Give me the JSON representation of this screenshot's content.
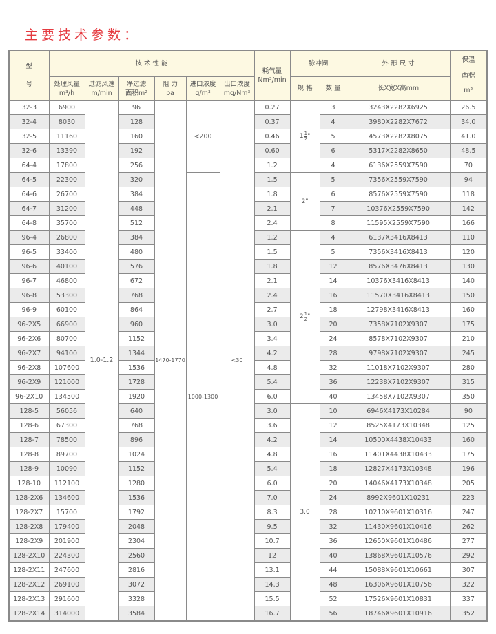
{
  "title": "主要技术参数：",
  "colors": {
    "title": "#e53a40",
    "header_bg": "#fdf9e2",
    "alt_row": "#ebebeb"
  },
  "header": {
    "model": "型\n号",
    "tech_perf": "技 术 性 能",
    "air_volume": "处理风量",
    "air_volume_unit": "m³/h",
    "filter_speed": "过滤风速",
    "filter_speed_unit": "m/min",
    "filter_area": "净过滤",
    "filter_area_unit": "面积m²",
    "resistance": "阻 力",
    "resistance_unit": "pa",
    "inlet_conc": "进口浓度",
    "inlet_conc_unit": "g/m³",
    "outlet_conc": "出口浓度",
    "outlet_conc_unit": "mg/Nm³",
    "air_consumption": "耗气量",
    "air_consumption_unit": "Nm³/min",
    "pulse_valve": "脉冲阀",
    "valve_spec": "规 格",
    "valve_count": "数 量",
    "dimensions": "外 形 尺 寸",
    "dimensions_sub": "长X宽X高mm",
    "insulation": "保温",
    "insulation2": "面积",
    "insulation_unit": "m²"
  },
  "merged": {
    "filter_speed": "1.0-1.2",
    "resistance": "1470-1770",
    "inlet_conc": [
      "<200",
      "1000-1300"
    ],
    "outlet_conc": "<30",
    "valve_spec": [
      {
        "whole": "1",
        "num": "1",
        "den": "2",
        "unit": "\""
      },
      {
        "whole": "2",
        "unit": "\""
      },
      {
        "whole": "2",
        "num": "1",
        "den": "2",
        "unit": "\""
      },
      {
        "whole": "3.0"
      }
    ]
  },
  "rows": [
    [
      "32-3",
      "6900",
      "96",
      "0.27",
      "3",
      "3243X2282X6925",
      "26.5"
    ],
    [
      "32-4",
      "8030",
      "128",
      "0.37",
      "4",
      "3980X2282X7672",
      "34.0"
    ],
    [
      "32-5",
      "11160",
      "160",
      "0.46",
      "5",
      "4573X2282X8075",
      "41.0"
    ],
    [
      "32-6",
      "13390",
      "192",
      "0.60",
      "6",
      "5317X2282X8650",
      "48.5"
    ],
    [
      "64-4",
      "17800",
      "256",
      "1.2",
      "4",
      "6136X2559X7590",
      "70"
    ],
    [
      "64-5",
      "22300",
      "320",
      "1.5",
      "5",
      "7356X2559X7590",
      "94"
    ],
    [
      "64-6",
      "26700",
      "384",
      "1.8",
      "6",
      "8576X2559X7590",
      "118"
    ],
    [
      "64-7",
      "31200",
      "448",
      "2.1",
      "7",
      "10376X2559X7590",
      "142"
    ],
    [
      "64-8",
      "35700",
      "512",
      "2.4",
      "8",
      "11595X2559X7590",
      "166"
    ],
    [
      "96-4",
      "26800",
      "384",
      "1.2",
      "4",
      "6137X3416X8413",
      "110"
    ],
    [
      "96-5",
      "33400",
      "480",
      "1.5",
      "5",
      "7356X3416X8413",
      "120"
    ],
    [
      "96-6",
      "40100",
      "576",
      "1.8",
      "12",
      "8576X3476X8413",
      "130"
    ],
    [
      "96-7",
      "46800",
      "672",
      "2.1",
      "14",
      "10376X3416X8413",
      "140"
    ],
    [
      "96-8",
      "53300",
      "768",
      "2.4",
      "16",
      "11570X3416X8413",
      "150"
    ],
    [
      "96-9",
      "60100",
      "864",
      "2.7",
      "18",
      "12798X3416X8413",
      "160"
    ],
    [
      "96-2X5",
      "66900",
      "960",
      "3.0",
      "20",
      "7358X7102X9307",
      "175"
    ],
    [
      "96-2X6",
      "80700",
      "1152",
      "3.4",
      "24",
      "8578X7102X9307",
      "210"
    ],
    [
      "96-2X7",
      "94100",
      "1344",
      "4.2",
      "28",
      "9798X7102X9307",
      "245"
    ],
    [
      "96-2X8",
      "107600",
      "1536",
      "4.8",
      "32",
      "11018X7102X9307",
      "280"
    ],
    [
      "96-2X9",
      "121000",
      "1728",
      "5.4",
      "36",
      "12238X7102X9307",
      "315"
    ],
    [
      "96-2X10",
      "134500",
      "1920",
      "6.0",
      "40",
      "13458X7102X9307",
      "350"
    ],
    [
      "128-5",
      "56056",
      "640",
      "3.0",
      "10",
      "6946X4173X10284",
      "90"
    ],
    [
      "128-6",
      "67300",
      "768",
      "3.6",
      "12",
      "8525X4173X10348",
      "125"
    ],
    [
      "128-7",
      "78500",
      "896",
      "4.2",
      "14",
      "10500X4438X10433",
      "160"
    ],
    [
      "128-8",
      "89700",
      "1024",
      "4.8",
      "16",
      "11401X4438X10433",
      "175"
    ],
    [
      "128-9",
      "10090",
      "1152",
      "5.4",
      "18",
      "12827X4173X10348",
      "196"
    ],
    [
      "128-10",
      "112100",
      "1280",
      "6.0",
      "20",
      "14046X4173X10348",
      "205"
    ],
    [
      "128-2X6",
      "134600",
      "1536",
      "7.0",
      "24",
      "8992X9601X10231",
      "223"
    ],
    [
      "128-2X7",
      "15700",
      "1792",
      "8.3",
      "28",
      "10210X9601X10316",
      "247"
    ],
    [
      "128-2X8",
      "179400",
      "2048",
      "9.5",
      "32",
      "11430X9601X10416",
      "262"
    ],
    [
      "128-2X9",
      "201900",
      "2304",
      "10.7",
      "36",
      "12650X9601X10486",
      "277"
    ],
    [
      "128-2X10",
      "224300",
      "2560",
      "12",
      "40",
      "13868X9601X10576",
      "292"
    ],
    [
      "128-2X11",
      "247600",
      "2816",
      "13.1",
      "44",
      "15088X9601X10661",
      "307"
    ],
    [
      "128-2X12",
      "269100",
      "3072",
      "14.3",
      "48",
      "16306X9601X10756",
      "322"
    ],
    [
      "128-2X13",
      "291600",
      "3328",
      "15.5",
      "52",
      "17526X9601X10831",
      "337"
    ],
    [
      "128-2X14",
      "314000",
      "3584",
      "16.7",
      "56",
      "18746X9601X10916",
      "352"
    ]
  ]
}
